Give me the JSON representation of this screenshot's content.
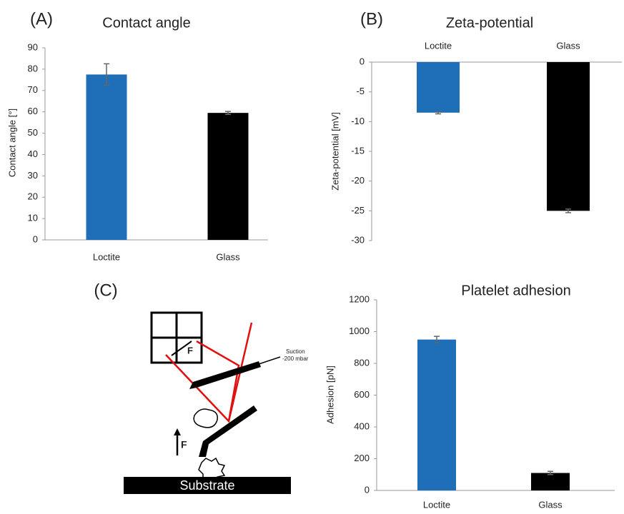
{
  "chart_data": [
    {
      "type": "bar",
      "panel": "(A)",
      "title": "Contact angle",
      "y_label": "Contact angle [°]",
      "categories": [
        "Loctite",
        "Glass"
      ],
      "values": [
        77.5,
        59.5
      ],
      "errors": [
        5,
        0.7
      ],
      "colors": [
        "#1f6fb8",
        "#000000"
      ],
      "ylim": [
        0,
        90
      ],
      "yticks": [
        0,
        10,
        20,
        30,
        40,
        50,
        60,
        70,
        80,
        90
      ]
    },
    {
      "type": "bar",
      "panel": "(B)",
      "title": "Zeta-potential",
      "y_label": "Zeta-potential [mV]",
      "categories": [
        "Loctite",
        "Glass"
      ],
      "values": [
        -8.5,
        -25
      ],
      "errors": [
        0.2,
        0.3
      ],
      "colors": [
        "#1f6fb8",
        "#000000"
      ],
      "ylim": [
        -30,
        0
      ],
      "yticks": [
        0,
        -5,
        -10,
        -15,
        -20,
        -25,
        -30
      ]
    },
    {
      "type": "bar",
      "title": "Platelet adhesion",
      "y_label": "Adhesion [pN]",
      "categories": [
        "Loctite",
        "Glass"
      ],
      "values": [
        950,
        110
      ],
      "errors": [
        20,
        10
      ],
      "colors": [
        "#1f6fb8",
        "#000000"
      ],
      "ylim": [
        0,
        1200
      ],
      "yticks": [
        0,
        200,
        400,
        600,
        800,
        1000,
        1200
      ]
    }
  ],
  "diagram": {
    "panel": "(C)",
    "labels": [
      "F",
      "Suction",
      "-200 mbar",
      "F",
      "Substrate"
    ]
  }
}
